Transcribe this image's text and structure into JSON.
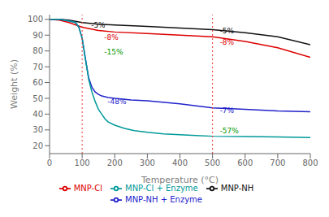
{
  "chart_data": {
    "type": "line",
    "xlabel": "Temperature (°C)",
    "ylabel": "Weight (%)",
    "xlim": [
      0,
      800
    ],
    "ylim": [
      15,
      103
    ],
    "xticks": [
      0,
      100,
      200,
      300,
      400,
      500,
      600,
      700,
      800
    ],
    "yticks": [
      20,
      30,
      40,
      50,
      60,
      70,
      80,
      90,
      100
    ],
    "grid": false,
    "legend": "bottom",
    "series": [
      {
        "name": "MNP-NH",
        "color": "#111111",
        "x": [
          0,
          30,
          60,
          100,
          150,
          200,
          300,
          400,
          500,
          600,
          700,
          800
        ],
        "values": [
          100,
          100,
          99.5,
          98,
          97,
          96.5,
          95.5,
          94.5,
          93.5,
          91.5,
          89,
          84
        ]
      },
      {
        "name": "MNP-Cl",
        "color": "#dd0000",
        "x": [
          0,
          30,
          60,
          100,
          150,
          200,
          300,
          400,
          500,
          600,
          700,
          800
        ],
        "values": [
          100,
          99.5,
          98,
          95,
          93,
          92,
          91,
          90,
          89,
          86,
          82,
          76
        ]
      },
      {
        "name": "MNP-NH + Enzyme",
        "color": "#2222cc",
        "x": [
          0,
          30,
          60,
          80,
          90,
          100,
          110,
          120,
          130,
          140,
          150,
          160,
          170,
          180,
          200,
          250,
          300,
          400,
          500,
          600,
          700,
          800
        ],
        "values": [
          100,
          100,
          99,
          98,
          95,
          88,
          75,
          63,
          57,
          54,
          52.5,
          51.5,
          51,
          50.5,
          50,
          49,
          48.5,
          46.5,
          44,
          43,
          42,
          41.5
        ]
      },
      {
        "name": "MNP-Cl + Enzyme",
        "color": "#009999",
        "x": [
          0,
          30,
          60,
          80,
          90,
          100,
          110,
          120,
          130,
          140,
          150,
          160,
          170,
          180,
          200,
          230,
          260,
          300,
          350,
          400,
          450,
          500,
          600,
          700,
          800
        ],
        "values": [
          100,
          100,
          99,
          98,
          95,
          88,
          75,
          62,
          54,
          48,
          43,
          40,
          37,
          35,
          33,
          31,
          29.5,
          28.5,
          27.5,
          27,
          26.5,
          26,
          25.8,
          25.5,
          25.2
        ]
      }
    ],
    "vlines": [
      {
        "x": 100,
        "color": "#ee3333",
        "line_style": "dotted"
      },
      {
        "x": 500,
        "color": "#ee3333",
        "line_style": "dotted"
      }
    ],
    "annotations": [
      {
        "text": "-5%",
        "x": 115,
        "y": 96.5,
        "color": "#111111"
      },
      {
        "text": "-8%",
        "x": 155,
        "y": 88.5,
        "color": "#dd0000"
      },
      {
        "text": "-15%",
        "x": 155,
        "y": 79.5,
        "color": "#009900"
      },
      {
        "text": "-48%",
        "x": 165,
        "y": 48.0,
        "color": "#2222cc"
      },
      {
        "text": "-5%",
        "x": 510,
        "y": 93.0,
        "color": "#111111"
      },
      {
        "text": "-8%",
        "x": 510,
        "y": 85.5,
        "color": "#dd0000"
      },
      {
        "text": "-7%",
        "x": 510,
        "y": 42.5,
        "color": "#2222cc"
      },
      {
        "text": "-57%",
        "x": 510,
        "y": 29.5,
        "color": "#009900"
      }
    ]
  }
}
